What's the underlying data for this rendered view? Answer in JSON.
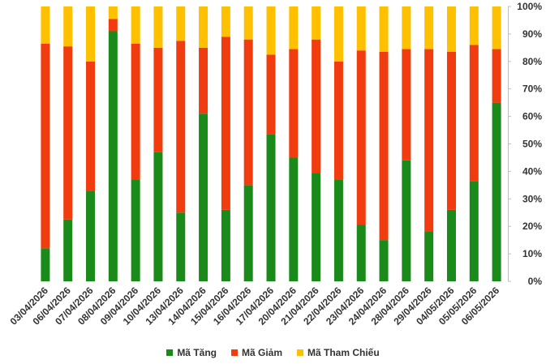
{
  "chart_data": {
    "type": "bar",
    "stacked": true,
    "normalized": true,
    "categories": [
      "03/04/2026",
      "06/04/2026",
      "07/04/2026",
      "08/04/2026",
      "09/04/2026",
      "10/04/2026",
      "13/04/2026",
      "14/04/2026",
      "15/04/2026",
      "16/04/2026",
      "17/04/2026",
      "20/04/2026",
      "21/04/2026",
      "22/04/2026",
      "23/04/2026",
      "24/04/2026",
      "28/04/2026",
      "29/04/2026",
      "04/05/2026",
      "05/05/2026",
      "06/05/2026"
    ],
    "series": [
      {
        "name": "Mã Tăng",
        "color": "#1a8a1a",
        "values": [
          12,
          22.5,
          33,
          91,
          37,
          47,
          25,
          61,
          26,
          35,
          53.5,
          45,
          39.5,
          37,
          20.5,
          15,
          44,
          18,
          26,
          36.5,
          65
        ]
      },
      {
        "name": "Mã Giảm",
        "color": "#f03c0f",
        "values": [
          74.5,
          63,
          47,
          4.5,
          49.5,
          38,
          62.5,
          24,
          63,
          53,
          29,
          39.5,
          48.5,
          43,
          63.5,
          68.5,
          40.5,
          66.5,
          57.5,
          49.5,
          19.5
        ]
      },
      {
        "name": "Mã Tham Chiếu",
        "color": "#ffc000",
        "values": [
          13.5,
          14.5,
          20,
          4.5,
          13.5,
          15,
          12.5,
          15,
          11,
          12,
          17.5,
          15.5,
          12,
          20,
          16,
          16.5,
          15.5,
          15.5,
          16.5,
          14,
          15.5
        ]
      }
    ],
    "y_ticks": [
      "0%",
      "10%",
      "20%",
      "30%",
      "40%",
      "50%",
      "60%",
      "70%",
      "80%",
      "90%",
      "100%"
    ],
    "ylim": [
      0,
      100
    ],
    "y_axis_position": "right",
    "legend_position": "bottom",
    "grid": false
  }
}
